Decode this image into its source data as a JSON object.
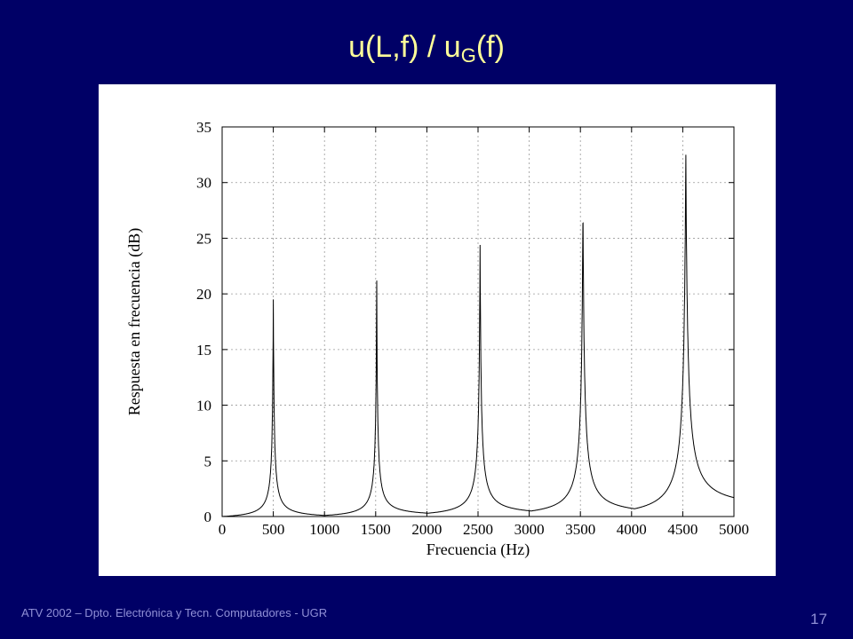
{
  "slide": {
    "title_main": "u(L,f) / u",
    "title_sub": "G",
    "title_end": "(f)",
    "footer": "ATV 2002 – Dpto. Electrónica y Tecn. Computadores - UGR",
    "page_number": "17"
  },
  "colors": {
    "background": "#000066",
    "title": "#ffff99",
    "footer": "#8f8fd6",
    "curve": "#000000",
    "grid": "#999999"
  },
  "chart_data": {
    "type": "line",
    "xlabel": "Frecuencia (Hz)",
    "ylabel": "Respuesta en frecuencia (dB)",
    "xlim": [
      0,
      5000
    ],
    "ylim": [
      0,
      35
    ],
    "xticks": [
      0,
      500,
      1000,
      1500,
      2000,
      2500,
      3000,
      3500,
      4000,
      4500,
      5000
    ],
    "yticks": [
      0,
      5,
      10,
      15,
      20,
      25,
      30,
      35
    ],
    "grid": true,
    "resonances": [
      {
        "x": 500,
        "y": 19.5
      },
      {
        "x": 1510,
        "y": 21.2
      },
      {
        "x": 2520,
        "y": 24.4
      },
      {
        "x": 3525,
        "y": 28
      },
      {
        "x": 4530,
        "y": 32.5
      }
    ],
    "troughs": [
      {
        "x": 0,
        "y": 0
      },
      {
        "x": 1000,
        "y": 0.1
      },
      {
        "x": 2010,
        "y": 0.3
      },
      {
        "x": 3020,
        "y": 0.5
      },
      {
        "x": 4030,
        "y": 0.7
      }
    ],
    "end_point": {
      "x": 5000,
      "y": 1.7
    }
  }
}
